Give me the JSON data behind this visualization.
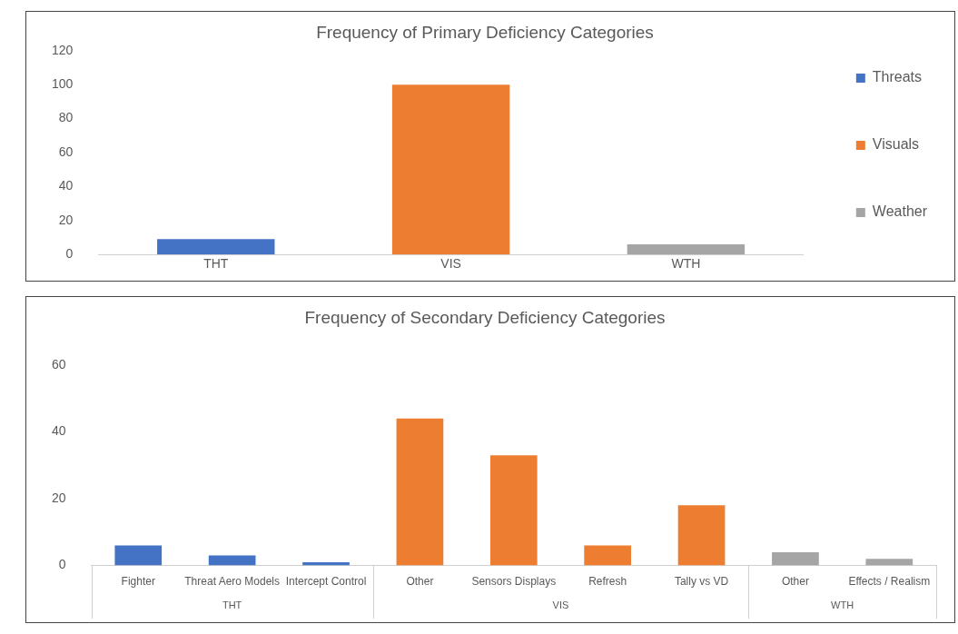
{
  "chart_data": [
    {
      "type": "bar",
      "title": "Frequency of Primary Deficiency Categories",
      "categories": [
        "THT",
        "VIS",
        "WTH"
      ],
      "series": [
        {
          "name": "Threats",
          "color": "#4472c4",
          "values": [
            9,
            null,
            null
          ]
        },
        {
          "name": "Visuals",
          "color": "#ed7d31",
          "values": [
            null,
            100,
            null
          ]
        },
        {
          "name": "Weather",
          "color": "#a5a5a5",
          "values": [
            null,
            null,
            6
          ]
        }
      ],
      "ylim": [
        0,
        120
      ],
      "yticks": [
        0,
        20,
        40,
        60,
        80,
        100,
        120
      ],
      "grid": false,
      "legend": "right"
    },
    {
      "type": "bar",
      "title": "Frequency of Secondary Deficiency Categories",
      "categories": [
        "Fighter",
        "Threat Aero Models",
        "Intercept Control",
        "Other",
        "Sensors Displays",
        "Refresh",
        "Tally vs VD",
        "Other",
        "Effects / Realism"
      ],
      "series": [
        {
          "color": "#4472c4",
          "values": [
            6,
            3,
            1,
            null,
            null,
            null,
            null,
            null,
            null
          ]
        },
        {
          "color": "#ed7d31",
          "values": [
            null,
            null,
            null,
            44,
            33,
            6,
            18,
            null,
            null
          ]
        },
        {
          "color": "#a5a5a5",
          "values": [
            null,
            null,
            null,
            null,
            null,
            null,
            null,
            4,
            2
          ]
        }
      ],
      "annotations": [
        "THT",
        "VIS",
        "WTH"
      ],
      "ylim": [
        0,
        60
      ],
      "yticks": [
        0,
        20,
        40,
        60
      ],
      "grid": false,
      "legend": false
    }
  ]
}
